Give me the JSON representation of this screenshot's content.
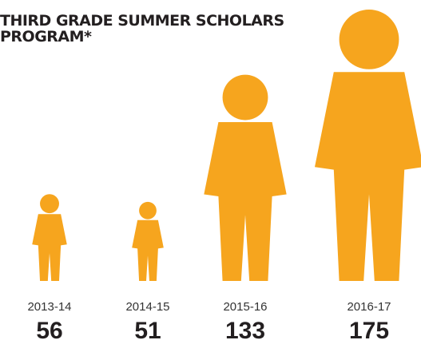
{
  "chart_data": {
    "type": "pictograph",
    "title": "THIRD GRADE SUMMER SCHOLARS PROGRAM*",
    "categories": [
      "2013-14",
      "2014-15",
      "2015-16",
      "2016-17"
    ],
    "values": [
      56,
      51,
      133,
      175
    ],
    "color": "#f6a51e"
  }
}
